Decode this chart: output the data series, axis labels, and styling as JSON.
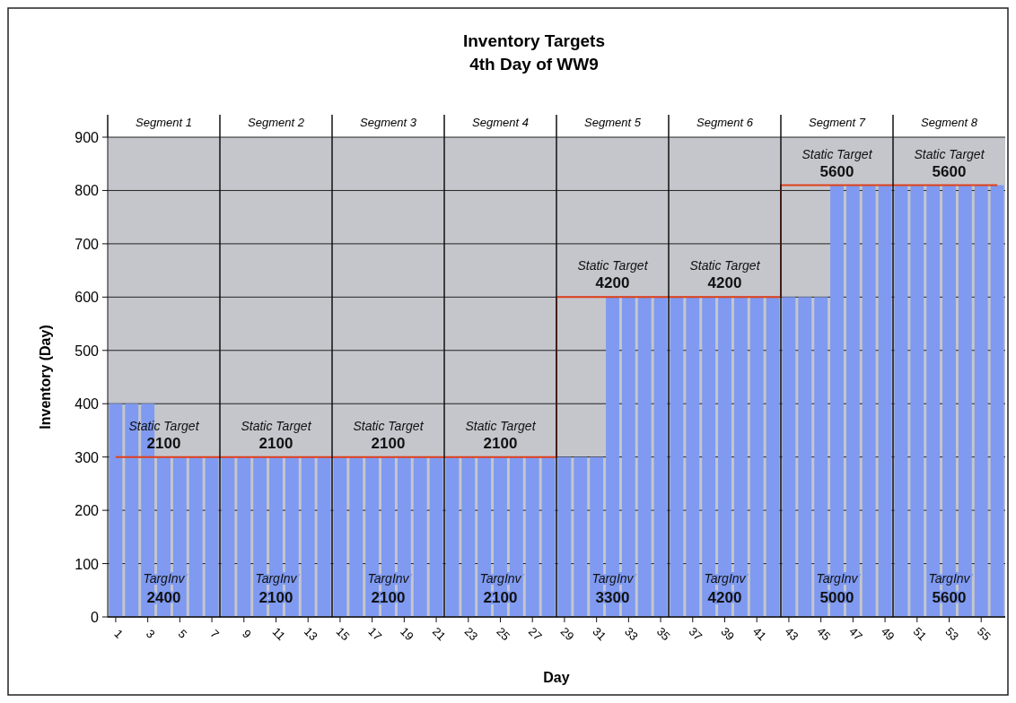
{
  "chart_data": {
    "type": "bar",
    "title": "Inventory Targets",
    "subtitle": "4th Day of WW9",
    "xlabel": "Day",
    "ylabel": "Inventory (Day)",
    "x": [
      1,
      2,
      3,
      4,
      5,
      6,
      7,
      8,
      9,
      10,
      11,
      12,
      13,
      14,
      15,
      16,
      17,
      18,
      19,
      20,
      21,
      22,
      23,
      24,
      25,
      26,
      27,
      28,
      29,
      30,
      31,
      32,
      33,
      34,
      35,
      36,
      37,
      38,
      39,
      40,
      41,
      42,
      43,
      44,
      45,
      46,
      47,
      48,
      49,
      50,
      51,
      52,
      53,
      54,
      55,
      56
    ],
    "xlim": [
      0.5,
      56.5
    ],
    "xticks": [
      1,
      3,
      5,
      7,
      9,
      11,
      13,
      15,
      17,
      19,
      21,
      23,
      25,
      27,
      29,
      31,
      33,
      35,
      37,
      39,
      41,
      43,
      45,
      47,
      49,
      51,
      53,
      55
    ],
    "series": [
      {
        "color": "#7f9af0",
        "values": [
          400,
          400,
          400,
          300,
          300,
          300,
          300,
          300,
          300,
          300,
          300,
          300,
          300,
          300,
          300,
          300,
          300,
          300,
          300,
          300,
          300,
          300,
          300,
          300,
          300,
          300,
          300,
          300,
          300,
          300,
          300,
          600,
          600,
          600,
          600,
          600,
          600,
          600,
          600,
          600,
          600,
          600,
          600,
          600,
          600,
          810,
          810,
          810,
          810,
          810,
          810,
          810,
          810,
          810,
          810,
          810
        ]
      },
      {
        "type": "step",
        "color": "#e0401a",
        "values": [
          300,
          300,
          300,
          300,
          300,
          300,
          300,
          300,
          300,
          300,
          300,
          300,
          300,
          300,
          300,
          300,
          300,
          300,
          300,
          300,
          300,
          300,
          300,
          300,
          300,
          300,
          300,
          300,
          600,
          600,
          600,
          600,
          600,
          600,
          600,
          600,
          600,
          600,
          600,
          600,
          600,
          600,
          810,
          810,
          810,
          810,
          810,
          810,
          810,
          810,
          810,
          810,
          810,
          810,
          810,
          810
        ]
      }
    ],
    "ref_lines": [
      {
        "axis": "x",
        "value": 7.5,
        "color": "#111111"
      },
      {
        "axis": "x",
        "value": 14.5,
        "color": "#111111"
      },
      {
        "axis": "x",
        "value": 21.5,
        "color": "#111111"
      },
      {
        "axis": "x",
        "value": 28.5,
        "color": "#111111"
      },
      {
        "axis": "x",
        "value": 35.5,
        "color": "#111111"
      },
      {
        "axis": "x",
        "value": 42.5,
        "color": "#111111"
      },
      {
        "axis": "x",
        "value": 49.5,
        "color": "#111111"
      }
    ],
    "annotations": [
      "Segment 1",
      "Segment 2",
      "Segment 3",
      "Segment 4",
      "Segment 5",
      "Segment 6",
      "Segment 7",
      "Segment 8",
      "Static Target",
      "Static Target",
      "Static Target",
      "Static Target",
      "Static Target",
      "Static Target",
      "Static Target",
      "Static Target",
      "2100",
      "2100",
      "2100",
      "2100",
      "4200",
      "4200",
      "5600",
      "5600",
      "TargInv",
      "TargInv",
      "TargInv",
      "TargInv",
      "TargInv",
      "TargInv",
      "TargInv",
      "TargInv",
      "2400",
      "2100",
      "2100",
      "2100",
      "3300",
      "4200",
      "5000",
      "5600"
    ],
    "ylim": [
      0,
      900
    ],
    "yticks": [
      0,
      100,
      200,
      300,
      400,
      500,
      600,
      700,
      800,
      900
    ],
    "grid": "y"
  }
}
